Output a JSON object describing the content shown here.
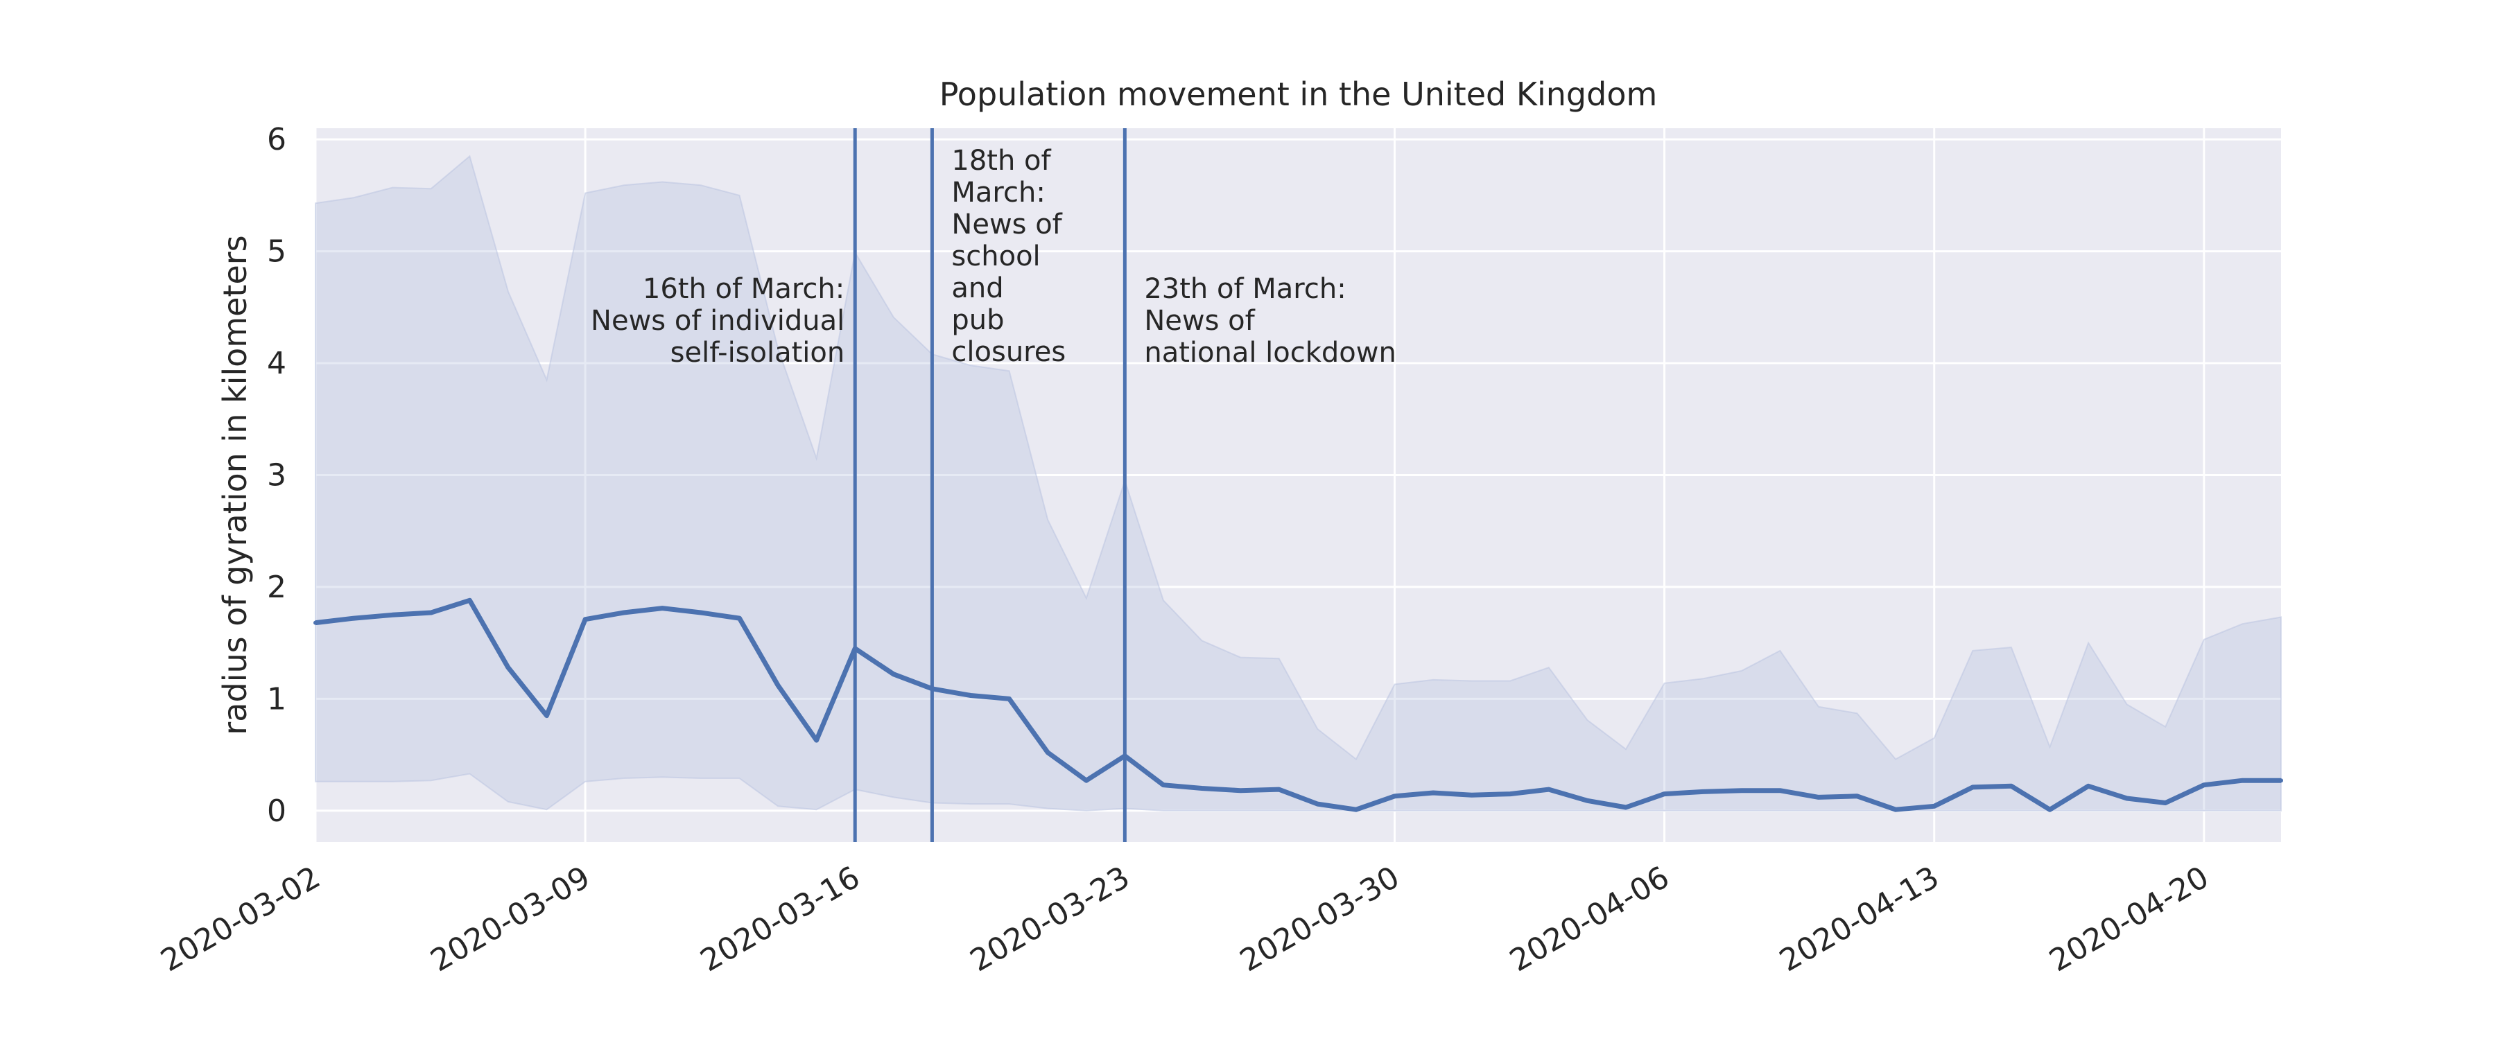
{
  "chart_data": {
    "type": "line",
    "title": "Population movement in the United Kingdom",
    "xlabel": "",
    "ylabel": "radius of gyration in kilometers",
    "xlim": [
      "2020-03-02",
      "2020-04-22"
    ],
    "ylim": [
      -0.28,
      6.1
    ],
    "x_ticks": [
      "2020-03-02",
      "2020-03-09",
      "2020-03-16",
      "2020-03-23",
      "2020-03-30",
      "2020-04-06",
      "2020-04-13",
      "2020-04-20"
    ],
    "y_ticks": [
      "0",
      "1",
      "2",
      "3",
      "4",
      "5",
      "6"
    ],
    "grid": true,
    "colors": {
      "line": "#4c72b0",
      "band": "#b8c2e0",
      "background": "#eaeaf2",
      "grid": "#ffffff"
    },
    "x": [
      "2020-03-02",
      "2020-03-03",
      "2020-03-04",
      "2020-03-05",
      "2020-03-06",
      "2020-03-07",
      "2020-03-08",
      "2020-03-09",
      "2020-03-10",
      "2020-03-11",
      "2020-03-12",
      "2020-03-13",
      "2020-03-14",
      "2020-03-15",
      "2020-03-16",
      "2020-03-17",
      "2020-03-18",
      "2020-03-19",
      "2020-03-20",
      "2020-03-21",
      "2020-03-22",
      "2020-03-23",
      "2020-03-24",
      "2020-03-25",
      "2020-03-26",
      "2020-03-27",
      "2020-03-28",
      "2020-03-29",
      "2020-03-30",
      "2020-03-31",
      "2020-04-01",
      "2020-04-02",
      "2020-04-03",
      "2020-04-04",
      "2020-04-05",
      "2020-04-06",
      "2020-04-07",
      "2020-04-08",
      "2020-04-09",
      "2020-04-10",
      "2020-04-11",
      "2020-04-12",
      "2020-04-13",
      "2020-04-14",
      "2020-04-15",
      "2020-04-16",
      "2020-04-17",
      "2020-04-18",
      "2020-04-19",
      "2020-04-20",
      "2020-04-21",
      "2020-04-22"
    ],
    "series": [
      {
        "values": [
          1.68,
          1.72,
          1.75,
          1.77,
          1.88,
          1.28,
          0.85,
          1.71,
          1.77,
          1.81,
          1.77,
          1.72,
          1.12,
          0.63,
          1.45,
          1.22,
          1.09,
          1.03,
          1.0,
          0.52,
          0.27,
          0.49,
          0.23,
          0.2,
          0.18,
          0.19,
          0.06,
          0.01,
          0.13,
          0.16,
          0.14,
          0.15,
          0.19,
          0.09,
          0.03,
          0.15,
          0.17,
          0.18,
          0.18,
          0.12,
          0.13,
          0.01,
          0.04,
          0.21,
          0.22,
          0.01,
          0.22,
          0.11,
          0.07,
          0.23,
          0.27,
          0.27
        ]
      }
    ],
    "band": {
      "lower": [
        0.26,
        0.26,
        0.26,
        0.27,
        0.33,
        0.08,
        0.01,
        0.26,
        0.29,
        0.3,
        0.29,
        0.29,
        0.04,
        0.01,
        0.19,
        0.12,
        0.07,
        0.06,
        0.06,
        0.02,
        0.0,
        0.02,
        0.0,
        0.0,
        0.0,
        0.0,
        0.0,
        0.0,
        0.0,
        0.0,
        0.0,
        0.0,
        0.0,
        0.0,
        0.0,
        0.0,
        0.0,
        0.0,
        0.0,
        0.0,
        0.0,
        0.0,
        0.0,
        0.0,
        0.0,
        0.0,
        0.0,
        0.0,
        0.0,
        0.0,
        0.0,
        0.0
      ],
      "upper": [
        5.43,
        5.48,
        5.57,
        5.56,
        5.85,
        4.64,
        3.85,
        5.52,
        5.59,
        5.62,
        5.59,
        5.5,
        4.13,
        3.15,
        4.99,
        4.41,
        4.08,
        3.98,
        3.93,
        2.6,
        1.9,
        2.95,
        1.88,
        1.52,
        1.37,
        1.36,
        0.73,
        0.46,
        1.13,
        1.17,
        1.16,
        1.16,
        1.28,
        0.81,
        0.55,
        1.14,
        1.18,
        1.25,
        1.43,
        0.93,
        0.87,
        0.46,
        0.65,
        1.43,
        1.46,
        0.57,
        1.5,
        0.95,
        0.75,
        1.53,
        1.67,
        1.73
      ]
    },
    "annotations": [
      {
        "x": "2020-03-16",
        "lines": [
          "16th of March:",
          "News of individual",
          "self-isolation"
        ],
        "align": "right"
      },
      {
        "x": "2020-03-18",
        "lines": [
          "18th of",
          "March:",
          "News of",
          "school",
          "and",
          "pub",
          "closures"
        ],
        "align": "left"
      },
      {
        "x": "2020-03-23",
        "lines": [
          "23th of March:",
          "News of",
          "national lockdown"
        ],
        "align": "left"
      }
    ]
  }
}
